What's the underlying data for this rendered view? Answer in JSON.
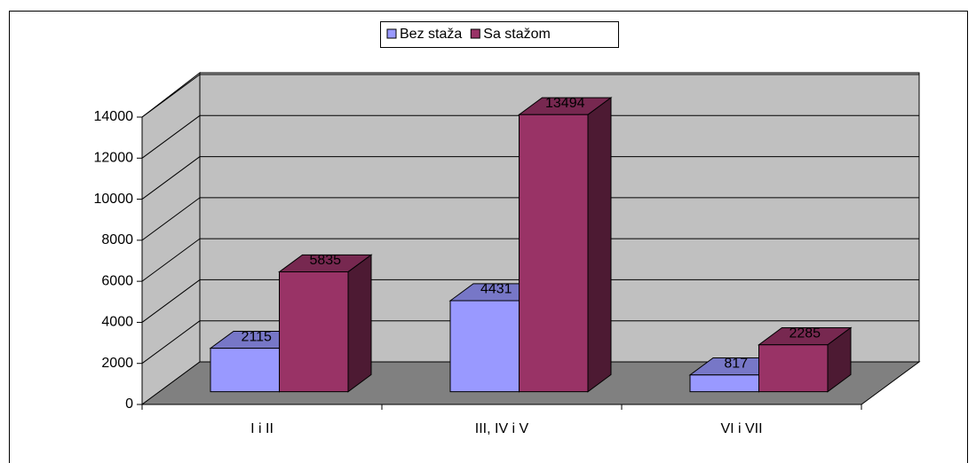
{
  "chart_data": {
    "type": "bar3d",
    "categories": [
      "I i II",
      "III, IV i V",
      "VI i VII"
    ],
    "series": [
      {
        "name": "Bez staža",
        "color": "#9999ff",
        "values": [
          2115,
          4431,
          817
        ]
      },
      {
        "name": "Sa stažom",
        "color": "#993366",
        "values": [
          5835,
          13494,
          2285
        ]
      }
    ],
    "ylim": [
      0,
      14000
    ],
    "yticks": [
      0,
      2000,
      4000,
      6000,
      8000,
      10000,
      12000,
      14000
    ],
    "grid": true,
    "legend": "top"
  }
}
